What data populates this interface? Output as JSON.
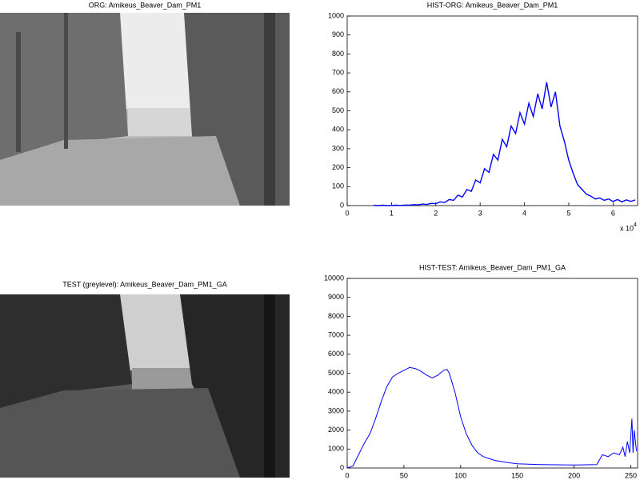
{
  "images": [
    {
      "title": "ORG: Amikeus_Beaver_Dam_PM1"
    },
    {
      "title": "TEST (greylevel): Amikeus_Beaver_Dam_PM1_GA"
    }
  ],
  "chart_data": [
    {
      "type": "line",
      "title": "HIST-ORG: Amikeus_Beaver_Dam_PM1",
      "color": "#0000ff",
      "x": [
        6000,
        7000,
        8000,
        9000,
        10000,
        11000,
        12000,
        13000,
        14000,
        15000,
        16000,
        17000,
        18000,
        19000,
        20000,
        21000,
        22000,
        23000,
        24000,
        25000,
        26000,
        27000,
        28000,
        29000,
        30000,
        31000,
        32000,
        33000,
        34000,
        35000,
        36000,
        37000,
        38000,
        39000,
        40000,
        41000,
        42000,
        43000,
        44000,
        45000,
        46000,
        47000,
        48000,
        49000,
        50000,
        51000,
        52000,
        53000,
        54000,
        55000,
        56000,
        57000,
        58000,
        59000,
        60000,
        61000,
        62000,
        63000,
        64000,
        65000
      ],
      "values": [
        2,
        0,
        2,
        0,
        1,
        2,
        1,
        3,
        2,
        5,
        4,
        8,
        6,
        12,
        10,
        20,
        16,
        32,
        28,
        55,
        45,
        85,
        75,
        135,
        120,
        195,
        175,
        270,
        240,
        350,
        310,
        420,
        380,
        490,
        430,
        540,
        470,
        590,
        510,
        650,
        520,
        600,
        420,
        340,
        240,
        170,
        110,
        85,
        60,
        50,
        35,
        40,
        28,
        35,
        22,
        32,
        20,
        30,
        22,
        30
      ],
      "xlim": [
        0,
        65536
      ],
      "xticks": [
        {
          "value": 0,
          "label": "0"
        },
        {
          "value": 10000,
          "label": "1"
        },
        {
          "value": 20000,
          "label": "2"
        },
        {
          "value": 30000,
          "label": "3"
        },
        {
          "value": 40000,
          "label": "4"
        },
        {
          "value": 50000,
          "label": "5"
        },
        {
          "value": 60000,
          "label": "6"
        }
      ],
      "x_scale": {
        "base": "x 10",
        "exponent": "4"
      },
      "ylim": [
        0,
        1000
      ],
      "yticks": [
        0,
        100,
        200,
        300,
        400,
        500,
        600,
        700,
        800,
        900,
        1000
      ]
    },
    {
      "type": "line",
      "title": "HIST-TEST: Amikeus_Beaver_Dam_PM1_GA",
      "color": "#0000ff",
      "x": [
        0,
        5,
        10,
        15,
        20,
        25,
        30,
        35,
        40,
        45,
        50,
        55,
        60,
        65,
        70,
        75,
        80,
        85,
        88,
        90,
        95,
        100,
        105,
        110,
        115,
        120,
        130,
        140,
        150,
        170,
        200,
        220,
        225,
        230,
        235,
        240,
        243,
        245,
        247,
        249,
        251,
        252,
        253,
        255
      ],
      "values": [
        0,
        100,
        700,
        1300,
        1800,
        2600,
        3500,
        4300,
        4800,
        5000,
        5150,
        5300,
        5250,
        5100,
        4900,
        4750,
        4900,
        5150,
        5200,
        5000,
        4000,
        2700,
        1800,
        1200,
        800,
        600,
        400,
        300,
        220,
        180,
        160,
        180,
        700,
        600,
        800,
        700,
        1100,
        600,
        1400,
        800,
        2600,
        800,
        2000,
        900
      ],
      "xlim": [
        0,
        256
      ],
      "xticks": [
        0,
        50,
        100,
        150,
        200,
        250
      ],
      "ylim": [
        0,
        10000
      ],
      "yticks": [
        0,
        1000,
        2000,
        3000,
        4000,
        5000,
        6000,
        7000,
        8000,
        9000,
        10000
      ]
    }
  ]
}
